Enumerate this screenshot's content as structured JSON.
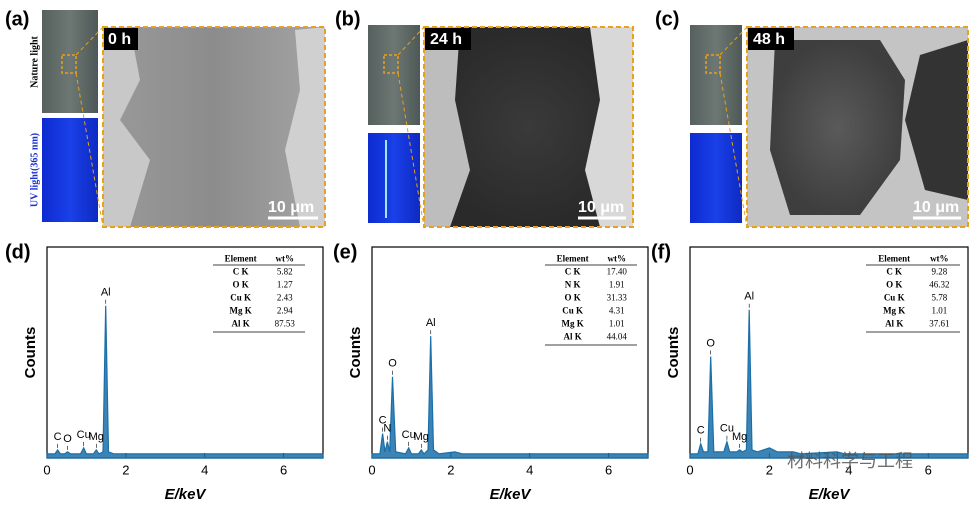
{
  "images": [
    {
      "label": "(a)",
      "time": "0 h",
      "scale": "10 μm"
    },
    {
      "label": "(b)",
      "time": "24 h",
      "scale": "10 μm"
    },
    {
      "label": "(c)",
      "time": "48 h",
      "scale": "10 μm"
    }
  ],
  "side_labels": {
    "nature": "Nature light",
    "uv": "UV light(365 nm)"
  },
  "watermark": "材料科学与工程",
  "chart_data": [
    {
      "type": "line",
      "panel": "(d)",
      "xlabel": "E/keV",
      "ylabel": "Counts",
      "color": "#1a6fa8",
      "xlim": [
        0,
        7
      ],
      "xticks": [
        0,
        2,
        4,
        6
      ],
      "ylim": [
        0,
        100
      ],
      "x": [
        0,
        0.2,
        0.27,
        0.34,
        0.45,
        0.52,
        0.6,
        0.85,
        0.93,
        1.0,
        1.18,
        1.25,
        1.32,
        1.42,
        1.49,
        1.56,
        1.7,
        7
      ],
      "values": [
        2,
        2,
        4,
        2,
        2,
        3,
        2,
        2,
        5,
        2,
        2,
        4,
        2,
        3,
        75,
        3,
        2,
        2
      ],
      "peaks": [
        {
          "label": "C",
          "x": 0.27
        },
        {
          "label": "O",
          "x": 0.52
        },
        {
          "label": "Cu",
          "x": 0.93
        },
        {
          "label": "Mg",
          "x": 1.25
        },
        {
          "label": "Al",
          "x": 1.49
        }
      ],
      "table": {
        "header": [
          "Element",
          "wt%"
        ],
        "rows": [
          [
            "C K",
            "5.82"
          ],
          [
            "O K",
            "1.27"
          ],
          [
            "Cu K",
            "2.43"
          ],
          [
            "Mg K",
            "2.94"
          ],
          [
            "Al K",
            "87.53"
          ]
        ]
      }
    },
    {
      "type": "line",
      "panel": "(e)",
      "xlabel": "E/keV",
      "ylabel": "Counts",
      "color": "#1a6fa8",
      "xlim": [
        0,
        7
      ],
      "xticks": [
        0,
        2,
        4,
        6
      ],
      "ylim": [
        0,
        100
      ],
      "x": [
        0,
        0.2,
        0.27,
        0.33,
        0.39,
        0.45,
        0.52,
        0.6,
        0.85,
        0.93,
        1.0,
        1.18,
        1.25,
        1.32,
        1.42,
        1.49,
        1.56,
        1.7,
        2.1,
        2.3,
        7
      ],
      "values": [
        2,
        2,
        12,
        3,
        8,
        3,
        40,
        3,
        2,
        5,
        2,
        2,
        4,
        2,
        4,
        60,
        4,
        2,
        3,
        2,
        2
      ],
      "peaks": [
        {
          "label": "C",
          "x": 0.27
        },
        {
          "label": "N",
          "x": 0.39
        },
        {
          "label": "O",
          "x": 0.52
        },
        {
          "label": "Cu",
          "x": 0.93
        },
        {
          "label": "Mg",
          "x": 1.25
        },
        {
          "label": "Al",
          "x": 1.49
        }
      ],
      "table": {
        "header": [
          "Element",
          "wt%"
        ],
        "rows": [
          [
            "C K",
            "17.40"
          ],
          [
            "N K",
            "1.91"
          ],
          [
            "O K",
            "31.33"
          ],
          [
            "Cu K",
            "4.31"
          ],
          [
            "Mg K",
            "1.01"
          ],
          [
            "Al K",
            "44.04"
          ]
        ]
      }
    },
    {
      "type": "line",
      "panel": "(f)",
      "xlabel": "E/keV",
      "ylabel": "Counts",
      "color": "#1a6fa8",
      "xlim": [
        0,
        7
      ],
      "xticks": [
        0,
        2,
        4,
        6
      ],
      "ylim": [
        0,
        100
      ],
      "x": [
        0,
        0.2,
        0.27,
        0.34,
        0.45,
        0.52,
        0.6,
        0.85,
        0.93,
        1.0,
        1.18,
        1.25,
        1.32,
        1.42,
        1.49,
        1.56,
        1.7,
        2.0,
        2.2,
        2.6,
        2.8,
        3.7,
        3.9,
        7
      ],
      "values": [
        2,
        2,
        7,
        3,
        3,
        50,
        3,
        3,
        8,
        3,
        3,
        4,
        3,
        4,
        73,
        4,
        3,
        5,
        3,
        3,
        2,
        3,
        2,
        2
      ],
      "peaks": [
        {
          "label": "C",
          "x": 0.27
        },
        {
          "label": "O",
          "x": 0.52
        },
        {
          "label": "Cu",
          "x": 0.93
        },
        {
          "label": "Mg",
          "x": 1.25
        },
        {
          "label": "Al",
          "x": 1.49
        }
      ],
      "table": {
        "header": [
          "Element",
          "wt%"
        ],
        "rows": [
          [
            "C K",
            "9.28"
          ],
          [
            "O K",
            "46.32"
          ],
          [
            "Cu K",
            "5.78"
          ],
          [
            "Mg K",
            "1.01"
          ],
          [
            "Al K",
            "37.61"
          ]
        ]
      }
    }
  ]
}
